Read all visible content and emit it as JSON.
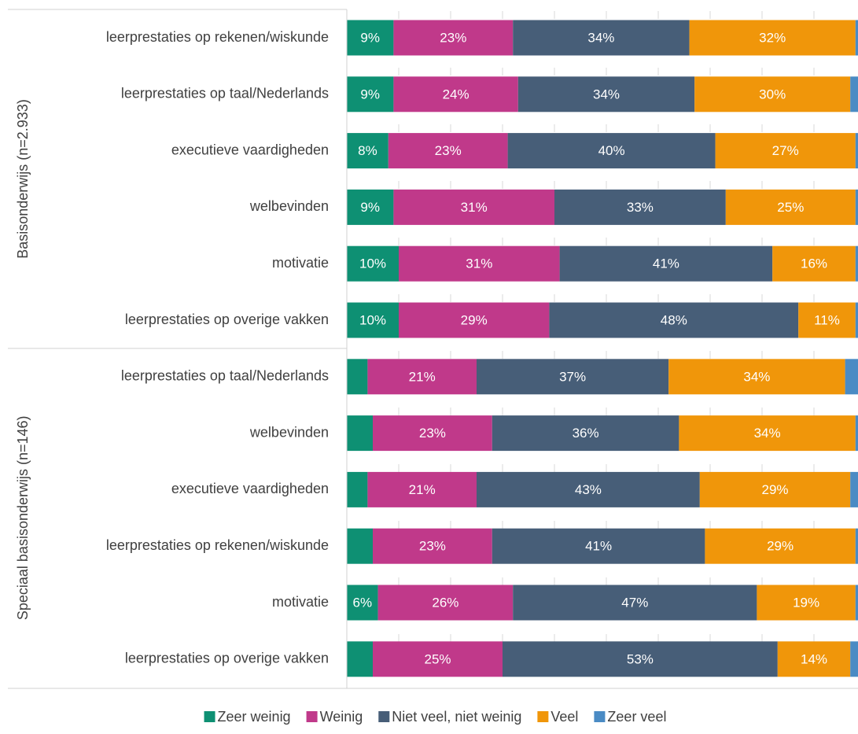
{
  "chart_data": {
    "type": "stacked-bar-horizontal",
    "groups": [
      {
        "name": "Basisonderwijs (n=2.933)",
        "categories": [
          "leerprestaties op rekenen/wiskunde",
          "leerprestaties op taal/Nederlands",
          "executieve vaardigheden",
          "welbevinden",
          "motivatie",
          "leerprestaties op overige vakken"
        ]
      },
      {
        "name": "Speciaal basisonderwijs (n=146)",
        "categories": [
          "leerprestaties op taal/Nederlands",
          "welbevinden",
          "executieve vaardigheden",
          "leerprestaties op rekenen/wiskunde",
          "motivatie",
          "leerprestaties op overige vakken"
        ]
      }
    ],
    "series": [
      {
        "name": "Zeer weinig",
        "color": "#0e9073",
        "values": [
          9,
          9,
          8,
          9,
          10,
          10,
          4,
          5,
          4,
          5,
          6,
          5
        ],
        "value_labels": [
          "9%",
          "9%",
          "8%",
          "9%",
          "10%",
          "10%",
          null,
          null,
          null,
          null,
          "6%",
          null
        ]
      },
      {
        "name": "Weinig",
        "color": "#c0398a",
        "values": [
          23,
          24,
          23,
          31,
          31,
          29,
          21,
          23,
          21,
          23,
          26,
          25
        ],
        "value_labels": [
          "23%",
          "24%",
          "23%",
          "31%",
          "31%",
          "29%",
          "21%",
          "23%",
          "21%",
          "23%",
          "26%",
          "25%"
        ]
      },
      {
        "name": "Niet veel, niet weinig",
        "color": "#475e78",
        "values": [
          34,
          34,
          40,
          33,
          41,
          48,
          37,
          36,
          43,
          41,
          47,
          53
        ],
        "value_labels": [
          "34%",
          "34%",
          "40%",
          "33%",
          "41%",
          "48%",
          "37%",
          "36%",
          "43%",
          "41%",
          "47%",
          "53%"
        ]
      },
      {
        "name": "Veel",
        "color": "#f0960a",
        "values": [
          32,
          30,
          27,
          25,
          16,
          11,
          34,
          34,
          29,
          29,
          19,
          14
        ],
        "value_labels": [
          "32%",
          "30%",
          "27%",
          "25%",
          "16%",
          "11%",
          "34%",
          "34%",
          "29%",
          "29%",
          "19%",
          "14%"
        ]
      },
      {
        "name": "Zeer veel",
        "color": "#4a8bc4",
        "values": [
          2,
          3,
          2,
          2,
          2,
          2,
          4,
          2,
          3,
          2,
          2,
          3
        ],
        "value_labels": [
          null,
          null,
          null,
          null,
          null,
          null,
          null,
          null,
          null,
          null,
          null,
          null
        ]
      }
    ],
    "xlim": [
      0,
      100
    ],
    "xticks": [
      10,
      20,
      30,
      40,
      50,
      60,
      70,
      80,
      90
    ],
    "grid": true,
    "legend": "bottom"
  }
}
